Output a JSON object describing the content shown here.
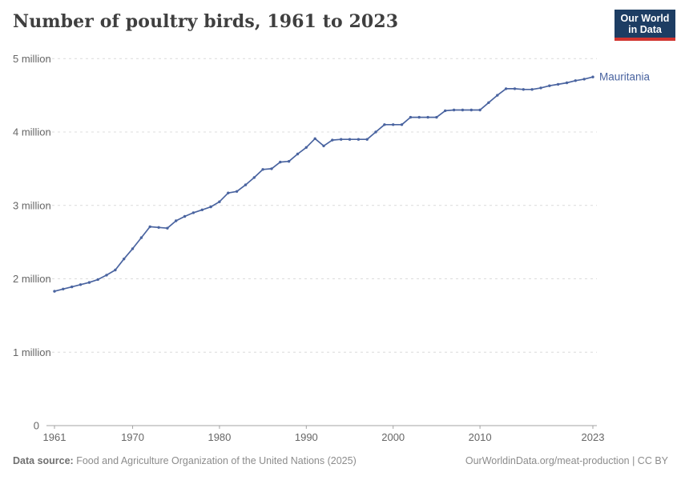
{
  "header": {
    "title": "Number of poultry birds, 1961 to 2023",
    "logo_line1": "Our World",
    "logo_line2": "in Data"
  },
  "colors": {
    "accent": "#4a64a0",
    "logo_navy": "#1d3d63",
    "logo_red": "#d1342f",
    "title_color": "#3f3f3f",
    "grid": "#dcdcdc",
    "axis": "#a3a3a3",
    "tick_text": "#666666"
  },
  "chart_data": {
    "type": "line",
    "title": "Number of poultry birds, 1961 to 2023",
    "entity_label": "Mauritania",
    "unit": "birds",
    "xlim": [
      1961,
      2023
    ],
    "ylim": [
      0,
      5000000
    ],
    "grid": "horizontal-dashed",
    "legend_position": "end-of-line",
    "x_ticks": [
      1961,
      1970,
      1980,
      1990,
      2000,
      2010,
      2023
    ],
    "y_ticks": [
      {
        "value": 0,
        "label": "0"
      },
      {
        "value": 1000000,
        "label": "1 million"
      },
      {
        "value": 2000000,
        "label": "2 million"
      },
      {
        "value": 3000000,
        "label": "3 million"
      },
      {
        "value": 4000000,
        "label": "4 million"
      },
      {
        "value": 5000000,
        "label": "5 million"
      }
    ],
    "x": [
      1961,
      1962,
      1963,
      1964,
      1965,
      1966,
      1967,
      1968,
      1969,
      1970,
      1971,
      1972,
      1973,
      1974,
      1975,
      1976,
      1977,
      1978,
      1979,
      1980,
      1981,
      1982,
      1983,
      1984,
      1985,
      1986,
      1987,
      1988,
      1989,
      1990,
      1991,
      1992,
      1993,
      1994,
      1995,
      1996,
      1997,
      1998,
      1999,
      2000,
      2001,
      2002,
      2003,
      2004,
      2005,
      2006,
      2007,
      2008,
      2009,
      2010,
      2011,
      2012,
      2013,
      2014,
      2015,
      2016,
      2017,
      2018,
      2019,
      2020,
      2021,
      2022,
      2023
    ],
    "values": [
      1830000,
      1860000,
      1890000,
      1920000,
      1950000,
      1990000,
      2050000,
      2120000,
      2270000,
      2410000,
      2560000,
      2710000,
      2700000,
      2690000,
      2790000,
      2850000,
      2900000,
      2940000,
      2980000,
      3050000,
      3170000,
      3190000,
      3280000,
      3380000,
      3490000,
      3500000,
      3590000,
      3600000,
      3700000,
      3790000,
      3910000,
      3810000,
      3890000,
      3900000,
      3900000,
      3900000,
      3900000,
      4000000,
      4100000,
      4100000,
      4100000,
      4200000,
      4200000,
      4200000,
      4200000,
      4290000,
      4300000,
      4300000,
      4300000,
      4300000,
      4400000,
      4500000,
      4590000,
      4590000,
      4580000,
      4580000,
      4600000,
      4630000,
      4650000,
      4670000,
      4700000,
      4720000,
      4750000
    ]
  },
  "footer": {
    "datasource_label": "Data source:",
    "datasource_text": "Food and Agriculture Organization of the United Nations (2025)",
    "attribution": "OurWorldinData.org/meat-production | CC BY"
  }
}
